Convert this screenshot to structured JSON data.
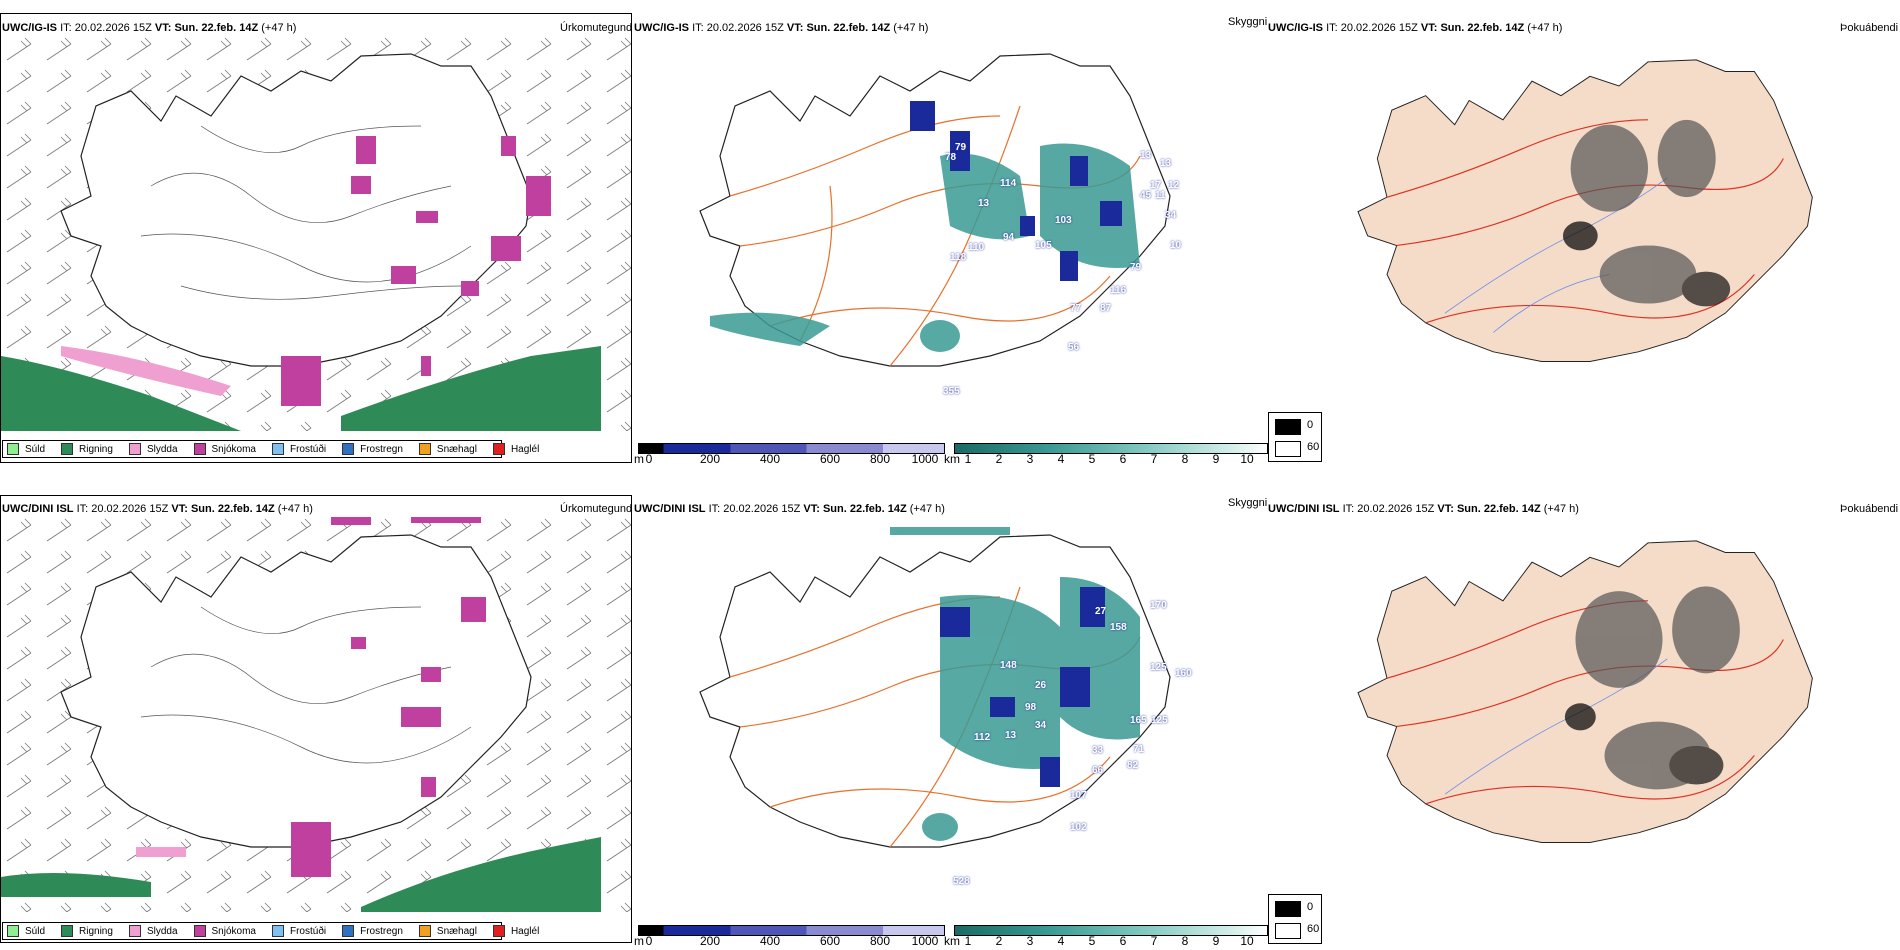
{
  "rows": [
    {
      "model": "UWC/IG-IS",
      "it_label": "IT:",
      "it_value": "20.02.2026 15Z",
      "vt_label": "VT:",
      "vt_value": "Sun. 22.feb. 14Z",
      "lead": "(+47 h)",
      "precip_title": "Úrkomutegund",
      "vis_title": "Skyggni",
      "fog_title": "Þokuábendi"
    },
    {
      "model": "UWC/DINI ISL",
      "it_label": "IT:",
      "it_value": "20.02.2026 15Z",
      "vt_label": "VT:",
      "vt_value": "Sun. 22.feb. 14Z",
      "lead": "(+47 h)",
      "precip_title": "Úrkomutegund",
      "vis_title": "Skyggni",
      "fog_title": "Þokuábendi"
    }
  ],
  "precip_legend": [
    {
      "label": "Súld",
      "color": "#90ee90"
    },
    {
      "label": "Rigning",
      "color": "#2e8b57"
    },
    {
      "label": "Slydda",
      "color": "#f0a0d0"
    },
    {
      "label": "Snjókoma",
      "color": "#c040a0"
    },
    {
      "label": "Frostúði",
      "color": "#80c0f0"
    },
    {
      "label": "Frostregn",
      "color": "#3070c0"
    },
    {
      "label": "Snæhagl",
      "color": "#f0a020"
    },
    {
      "label": "Haglél",
      "color": "#e02020"
    }
  ],
  "ceiling_bar": {
    "unit": "m",
    "ticks": [
      "0",
      "200",
      "400",
      "600",
      "800",
      "1000"
    ]
  },
  "visibility_bar": {
    "unit": "km",
    "ticks": [
      "1",
      "2",
      "3",
      "4",
      "5",
      "6",
      "7",
      "8",
      "9",
      "10"
    ]
  },
  "fog_legend": {
    "items": [
      {
        "label": "0",
        "color": "#000000"
      },
      {
        "label": "60",
        "color": "#ffffff"
      }
    ]
  },
  "ceiling_values_row1": [
    "79",
    "78",
    "114",
    "13",
    "103",
    "17",
    "105",
    "94",
    "118",
    "110",
    "79",
    "116",
    "87",
    "77",
    "56",
    "355",
    "45",
    "13",
    "34",
    "10",
    "11",
    "12",
    "13"
  ],
  "ceiling_values_row2": [
    "27",
    "170",
    "148",
    "158",
    "26",
    "98",
    "125",
    "165",
    "34",
    "13",
    "33",
    "71",
    "82",
    "66",
    "107",
    "102",
    "125",
    "528",
    "112",
    "160"
  ],
  "colors": {
    "land_fog": "#f5dcc8",
    "roads": "#e8702a",
    "roads_red": "#e03020",
    "rivers": "#6688ee",
    "snow": "#c040a0",
    "rain": "#2e8b57",
    "sleet": "#f0a0d0",
    "teal": "#3a9a94",
    "navy": "#1a2a9a"
  }
}
